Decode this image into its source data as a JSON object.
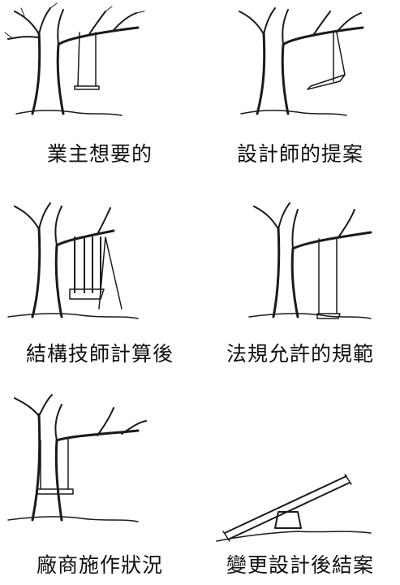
{
  "captions": [
    "業主想要的",
    "設計師的提案",
    "結構技師計算後",
    "法規允許的規範",
    "廠商施作狀況",
    "變更設計後結案"
  ],
  "colors": {
    "ink": "#1a1a1a",
    "paper": "#ffffff"
  }
}
